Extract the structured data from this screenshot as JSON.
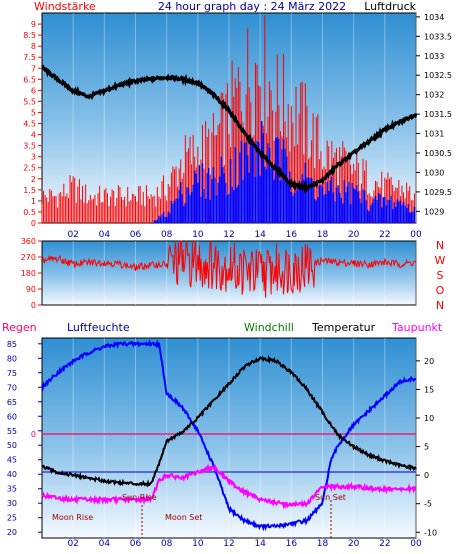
{
  "header": {
    "wind_label": "Windstärke",
    "title": "24 hour graph day : 24 März 2022",
    "pressure_label": "Luftdruck"
  },
  "colors": {
    "wind_speed": "#ff0000",
    "wind_avg": "#0000ff",
    "pressure": "#000000",
    "direction": "#ff0000",
    "humidity": "#0000ff",
    "temperature": "#000000",
    "windchill": "#008000",
    "dewpoint": "#ff00ff",
    "rain": "#ff0066",
    "sun_moon": "#990000",
    "axis_text": "#0000aa"
  },
  "chart_data": [
    {
      "type": "bar",
      "panel": "wind-pressure",
      "x_ticks": [
        "02",
        "04",
        "06",
        "08",
        "10",
        "12",
        "14",
        "16",
        "18",
        "20",
        "22",
        "00"
      ],
      "y_left_label": "Windstärke",
      "y_left_ticks": [
        "0",
        "0.5",
        "1",
        "1.5",
        "2",
        "2.5",
        "3",
        "3.5",
        "4",
        "4.5",
        "5",
        "5.5",
        "6",
        "6.5",
        "7",
        "7.5",
        "8",
        "8.5",
        "9"
      ],
      "y_left_range": [
        0,
        9.5
      ],
      "y_right_label": "Luftdruck",
      "y_right_ticks": [
        "1029",
        "1029.5",
        "1030",
        "1030.5",
        "1031",
        "1031.5",
        "1032",
        "1032.5",
        "1033",
        "1033.5",
        "1034"
      ],
      "y_right_range": [
        1028.7,
        1034.1
      ],
      "series": [
        {
          "name": "Windstärke",
          "hours": [
            0,
            1,
            2,
            3,
            4,
            5,
            6,
            7,
            8,
            9,
            10,
            11,
            12,
            13,
            14,
            15,
            16,
            17,
            18,
            19,
            20,
            21,
            22,
            23,
            24
          ],
          "values": [
            1.5,
            1.5,
            2,
            1.5,
            1.5,
            1.5,
            1.5,
            1.5,
            2,
            3.5,
            4,
            4.5,
            6,
            8,
            9,
            7,
            6.5,
            5.5,
            4,
            3.5,
            3,
            2.5,
            2,
            2,
            1.5
          ]
        },
        {
          "name": "Wind avg",
          "hours": [
            0,
            1,
            2,
            3,
            4,
            5,
            6,
            7,
            8,
            9,
            10,
            11,
            12,
            13,
            14,
            15,
            16,
            17,
            18,
            19,
            20,
            21,
            22,
            23,
            24
          ],
          "values": [
            0,
            0,
            0,
            0,
            0,
            0,
            0,
            0,
            0.5,
            1.5,
            2,
            2,
            2.5,
            3,
            3.5,
            3,
            2.5,
            2,
            1.5,
            1.5,
            1.5,
            1,
            1,
            1,
            0.5
          ]
        },
        {
          "name": "Luftdruck",
          "hours": [
            0,
            1,
            2,
            3,
            4,
            5,
            6,
            7,
            8,
            9,
            10,
            11,
            12,
            13,
            14,
            15,
            16,
            17,
            18,
            19,
            20,
            21,
            22,
            23,
            24
          ],
          "values": [
            1032.7,
            1032.4,
            1032.1,
            1031.95,
            1032.1,
            1032.25,
            1032.35,
            1032.4,
            1032.45,
            1032.4,
            1032.3,
            1032.0,
            1031.6,
            1031.0,
            1030.5,
            1030.1,
            1029.7,
            1029.6,
            1029.8,
            1030.2,
            1030.5,
            1030.8,
            1031.1,
            1031.3,
            1031.5
          ]
        }
      ]
    },
    {
      "type": "line",
      "panel": "wind-direction",
      "y_ticks": [
        "360",
        "270",
        "180",
        "90",
        "0"
      ],
      "y_range": [
        0,
        360
      ],
      "compass": [
        "N",
        "W",
        "S",
        "O",
        "N"
      ],
      "series": [
        {
          "name": "Windrichtung",
          "hours": [
            0,
            1,
            2,
            3,
            4,
            5,
            6,
            7,
            8,
            9,
            10,
            11,
            12,
            13,
            14,
            15,
            16,
            17,
            18,
            19,
            20,
            21,
            22,
            23,
            24
          ],
          "values": [
            250,
            260,
            230,
            240,
            240,
            230,
            210,
            225,
            230,
            250,
            240,
            230,
            220,
            190,
            180,
            200,
            210,
            220,
            250,
            240,
            235,
            230,
            240,
            230,
            240
          ]
        }
      ]
    },
    {
      "type": "line",
      "panel": "temperature-humidity",
      "legend": [
        "Regen",
        "Luftfeuchte",
        "Windchill",
        "Temperatur",
        "Taupunkt"
      ],
      "y_left_ticks": [
        "85",
        "80",
        "75",
        "70",
        "65",
        "60",
        "55",
        "50",
        "45",
        "40",
        "35",
        "30",
        "25",
        "20"
      ],
      "y_left_range": [
        18,
        87
      ],
      "y_right_ticks": [
        "20",
        "15",
        "10",
        "5",
        "0",
        "-5",
        "-10"
      ],
      "y_right_range": [
        -11,
        24
      ],
      "rain_value_label": "0",
      "sun_rise": "Sun Rise",
      "sun_set": "Sun Set",
      "moon_rise": "Moon Rise",
      "moon_set": "Moon Set",
      "series": [
        {
          "name": "Luftfeuchte",
          "hours": [
            0,
            1,
            2,
            3,
            4,
            5,
            6,
            7,
            7.5,
            8,
            9,
            10,
            11,
            12,
            13,
            14,
            15,
            16,
            17,
            18,
            18.5,
            19,
            20,
            21,
            22,
            23,
            24
          ],
          "values": [
            70,
            75,
            79,
            82,
            84,
            85,
            85,
            85,
            85,
            68,
            63,
            55,
            43,
            28,
            24,
            22,
            22,
            23,
            24,
            30,
            44,
            50,
            57,
            62,
            67,
            72,
            73
          ]
        },
        {
          "name": "Temperatur",
          "hours": [
            0,
            1,
            2,
            3,
            4,
            5,
            6,
            7,
            7.5,
            8,
            9,
            10,
            11,
            12,
            13,
            14,
            15,
            16,
            17,
            18,
            19,
            20,
            21,
            22,
            23,
            24
          ],
          "values": [
            1.5,
            0.5,
            0,
            -0.5,
            -1,
            -1.3,
            -1.5,
            -1.5,
            2,
            6,
            7.5,
            10,
            13,
            16,
            19,
            20.5,
            20,
            18,
            15,
            11,
            7,
            5,
            3.5,
            2.5,
            1.7,
            1.2
          ]
        },
        {
          "name": "Taupunkt",
          "hours": [
            0,
            1,
            2,
            3,
            4,
            5,
            6,
            7,
            7.5,
            8,
            9,
            10,
            11,
            12,
            13,
            14,
            15,
            16,
            17,
            18,
            19,
            20,
            21,
            22,
            23,
            24
          ],
          "values": [
            -3.5,
            -4,
            -4.3,
            -4.3,
            -4.3,
            -4.3,
            -4.3,
            -4.2,
            -1,
            0,
            -0.5,
            0.5,
            1.5,
            -1,
            -3,
            -4.2,
            -4.8,
            -5.2,
            -5,
            -2,
            -2,
            -2,
            -2.3,
            -2.5,
            -2.5,
            -2.3
          ]
        }
      ]
    }
  ]
}
